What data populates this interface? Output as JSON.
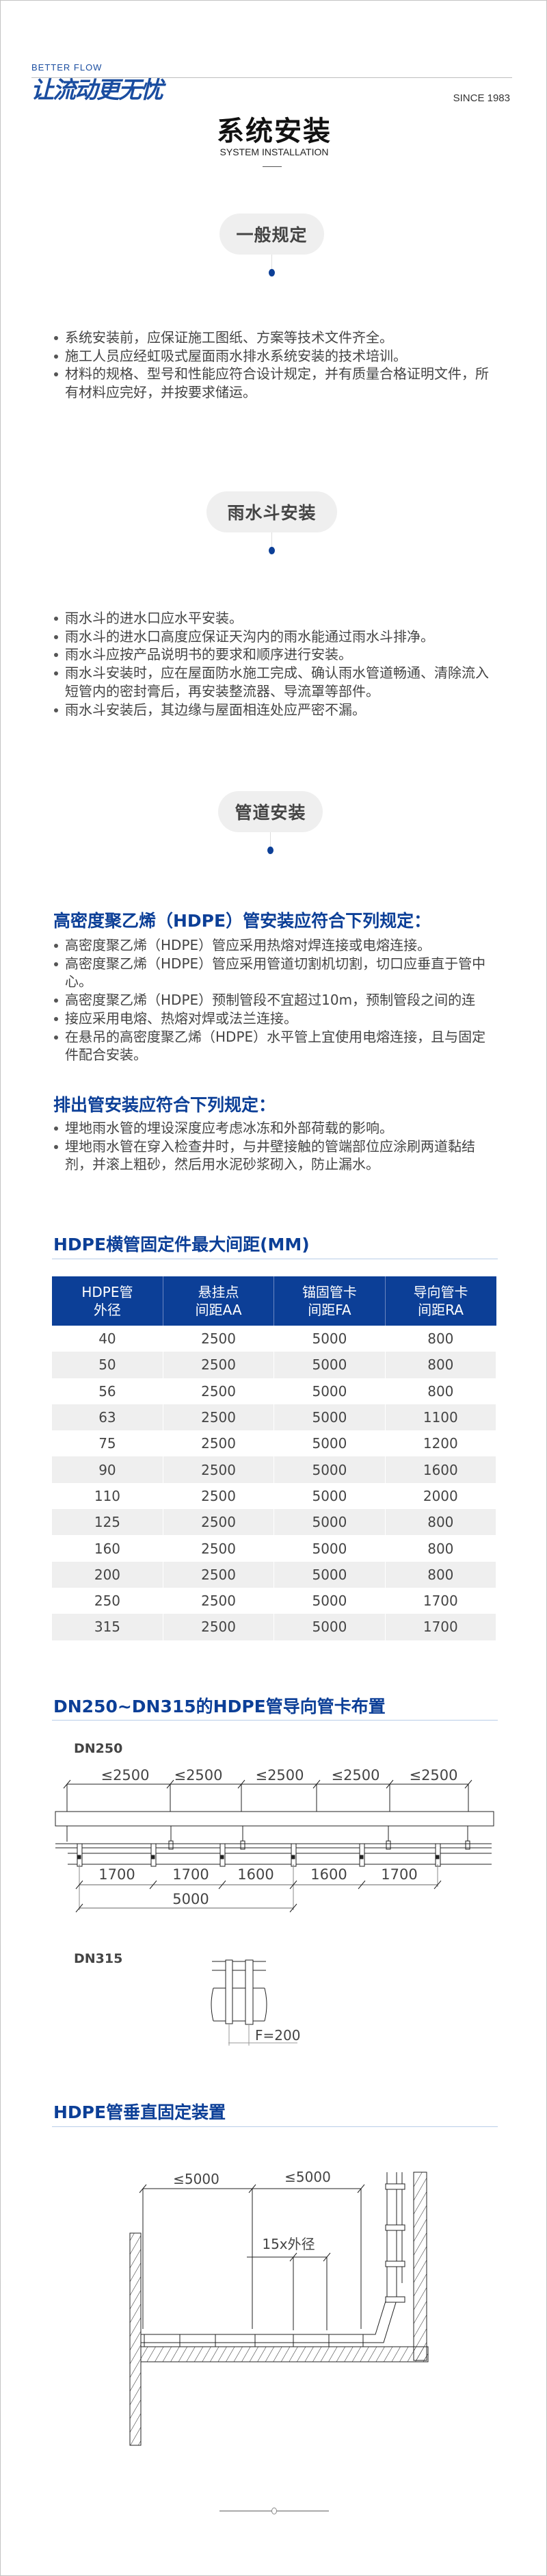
{
  "header": {
    "brand_en": "BETTER FLOW",
    "brand_cn": "让流动更无忧",
    "since": "SINCE 1983"
  },
  "page": {
    "title": "系统安装",
    "subtitle": "SYSTEM INSTALLATION"
  },
  "sections": [
    {
      "label": "一般规定",
      "items": [
        "系统安装前，应保证施工图纸、方案等技术文件齐全。",
        "施工人员应经虹吸式屋面雨水排水系统安装的技术培训。",
        "材料的规格、型号和性能应符合设计规定，并有质量合格证明文件，所有材料应完好，并按要求储运。"
      ]
    },
    {
      "label": "雨水斗安装",
      "items": [
        "雨水斗的进水口应水平安装。",
        "雨水斗的进水口高度应保证天沟内的雨水能通过雨水斗排净。",
        "雨水斗应按产品说明书的要求和顺序进行安装。",
        "雨水斗安装时，应在屋面防水施工完成、确认雨水管道畅通、清除流入短管内的密封膏后，再安装整流器、导流罩等部件。",
        "雨水斗安装后，其边缘与屋面相连处应严密不漏。"
      ]
    },
    {
      "label": "管道安装"
    }
  ],
  "hdpe_rules": {
    "heading": "高密度聚乙烯（HDPE）管安装应符合下列规定：",
    "items": [
      "高密度聚乙烯（HDPE）管应采用热熔对焊连接或电熔连接。",
      "高密度聚乙烯（HDPE）管应采用管道切割机切割，切口应垂直于管中心。",
      "高密度聚乙烯（HDPE）预制管段不宜超过10m，预制管段之间的连",
      "接应采用电熔、热熔对焊或法兰连接。",
      "在悬吊的高密度聚乙烯（HDPE）水平管上宜使用电熔连接，且与固定件配合安装。"
    ]
  },
  "outlet_rules": {
    "heading": "排出管安装应符合下列规定：",
    "items": [
      "埋地雨水管的埋设深度应考虑冰冻和外部荷载的影响。",
      "埋地雨水管在穿入检查井时，与井壁接触的管端部位应涂刷两道黏结剂，并滚上粗砂，然后用水泥砂浆砌入，防止漏水。"
    ]
  },
  "spacing_table": {
    "heading": "HDPE横管固定件最大间距(MM)",
    "columns": [
      [
        "HDPE管",
        "外径"
      ],
      [
        "悬挂点",
        "间距AA"
      ],
      [
        "锚固管卡",
        "间距FA"
      ],
      [
        "导向管卡",
        "间距RA"
      ]
    ],
    "rows": [
      [
        "40",
        "2500",
        "5000",
        "800"
      ],
      [
        "50",
        "2500",
        "5000",
        "800"
      ],
      [
        "56",
        "2500",
        "5000",
        "800"
      ],
      [
        "63",
        "2500",
        "5000",
        "1100"
      ],
      [
        "75",
        "2500",
        "5000",
        "1200"
      ],
      [
        "90",
        "2500",
        "5000",
        "1600"
      ],
      [
        "110",
        "2500",
        "5000",
        "2000"
      ],
      [
        "125",
        "2500",
        "5000",
        "800"
      ],
      [
        "160",
        "2500",
        "5000",
        "800"
      ],
      [
        "200",
        "2500",
        "5000",
        "800"
      ],
      [
        "250",
        "2500",
        "5000",
        "1700"
      ],
      [
        "315",
        "2500",
        "5000",
        "1700"
      ]
    ]
  },
  "guide_layout": {
    "heading": "DN250~DN315的HDPE管导向管卡布置",
    "dn250": {
      "label": "DN250",
      "top_dims": [
        "≤2500",
        "≤2500",
        "≤2500",
        "≤2500",
        "≤2500"
      ],
      "bottom_dims": [
        "1700",
        "1700",
        "1600",
        "1600",
        "1700"
      ],
      "total": "5000"
    },
    "dn315": {
      "label": "DN315",
      "dim": "F=200"
    }
  },
  "vertical_fixing": {
    "heading": "HDPE管垂直固定装置",
    "dims": [
      "≤5000",
      "≤5000"
    ],
    "dim_od": "15x外径"
  },
  "colors": {
    "brand_blue": "#0c3f97",
    "pill_bg": "#efefef",
    "row_alt": "#efefef"
  }
}
